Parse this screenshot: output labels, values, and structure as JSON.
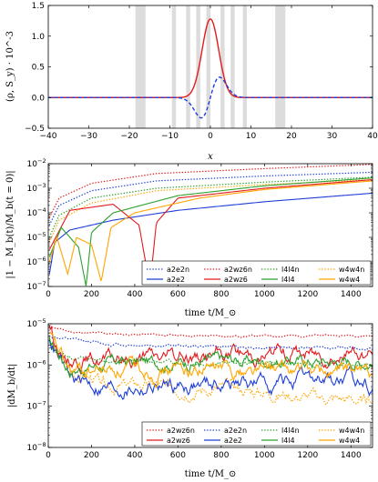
{
  "chart_data": [
    {
      "type": "line",
      "xlabel": "x",
      "ylabel": "(ρ, S_y) · 10^-3",
      "xlim": [
        -40,
        40
      ],
      "ylim": [
        -0.5,
        1.5
      ],
      "xticks": [
        "−40",
        "−30",
        "−20",
        "−10",
        "0",
        "10",
        "20",
        "30",
        "40"
      ],
      "yticks": [
        "−0.5",
        "0.0",
        "0.5",
        "1.0",
        "1.5"
      ],
      "bands": [
        [
          -18.5,
          -16
        ],
        [
          -9.5,
          -8.5
        ],
        [
          -6,
          -5
        ],
        [
          -3.5,
          -2.5
        ],
        [
          -1,
          0
        ],
        [
          2.5,
          3.5
        ],
        [
          5,
          6
        ],
        [
          8,
          9
        ],
        [
          16,
          18.5
        ]
      ],
      "series": [
        {
          "color": "#e31a1c",
          "style": "solid",
          "peak": 1.28,
          "center": 0,
          "width": 2.9
        },
        {
          "color": "#1f3fd8",
          "style": "dashed",
          "amplitude": 0.45,
          "kind": "odd"
        }
      ],
      "grid": false
    },
    {
      "type": "line",
      "xlabel": "time t/M_⊙",
      "ylabel": "|1 − M_b(t)/M_b(t = 0)|",
      "scale_y": "log",
      "xlim": [
        0,
        1500
      ],
      "ylim_exp": [
        -7,
        -2
      ],
      "xticks": [
        "0",
        "200",
        "400",
        "600",
        "800",
        "1000",
        "1200",
        "1400"
      ],
      "yticks": [
        "10",
        "10",
        "10",
        "10",
        "10",
        "10"
      ],
      "ytick_exps": [
        "−7",
        "−6",
        "−5",
        "−4",
        "−3",
        "−2"
      ],
      "legend_placement": "lower-right",
      "legend": [
        {
          "label": "a2e2n",
          "color": "#1f3fd8",
          "style": "dotted"
        },
        {
          "label": "a2wz6n",
          "color": "#e31a1c",
          "style": "dotted"
        },
        {
          "label": "l4l4n",
          "color": "#2ca02c",
          "style": "dotted"
        },
        {
          "label": "w4w4n",
          "color": "#ffa500",
          "style": "dotted"
        },
        {
          "label": "a2e2",
          "color": "#1f3fd8",
          "style": "solid"
        },
        {
          "label": "a2wz6",
          "color": "#e31a1c",
          "style": "solid"
        },
        {
          "label": "l4l4",
          "color": "#2ca02c",
          "style": "solid"
        },
        {
          "label": "w4w4",
          "color": "#ffa500",
          "style": "solid"
        }
      ],
      "series": [
        {
          "name": "a2wz6n",
          "color": "#e31a1c",
          "style": "dotted",
          "points": [
            [
              5,
              -4.2
            ],
            [
              50,
              -3.4
            ],
            [
              200,
              -2.8
            ],
            [
              500,
              -2.4
            ],
            [
              1000,
              -2.2
            ],
            [
              1500,
              -2.03
            ]
          ]
        },
        {
          "name": "a2e2n",
          "color": "#1f3fd8",
          "style": "dotted",
          "points": [
            [
              5,
              -4.5
            ],
            [
              50,
              -3.7
            ],
            [
              200,
              -3.1
            ],
            [
              500,
              -2.7
            ],
            [
              1000,
              -2.5
            ],
            [
              1500,
              -2.35
            ]
          ]
        },
        {
          "name": "l4l4n",
          "color": "#2ca02c",
          "style": "dotted",
          "points": [
            [
              5,
              -5.0
            ],
            [
              50,
              -4.1
            ],
            [
              200,
              -3.4
            ],
            [
              500,
              -3.0
            ],
            [
              1000,
              -2.75
            ],
            [
              1500,
              -2.55
            ]
          ]
        },
        {
          "name": "w4w4n",
          "color": "#ffa500",
          "style": "dotted",
          "points": [
            [
              5,
              -5.2
            ],
            [
              50,
              -4.3
            ],
            [
              200,
              -3.6
            ],
            [
              500,
              -3.1
            ],
            [
              1000,
              -2.85
            ],
            [
              1500,
              -2.65
            ]
          ]
        },
        {
          "name": "a2e2",
          "color": "#1f3fd8",
          "style": "solid",
          "points": [
            [
              5,
              -6.5
            ],
            [
              30,
              -5.2
            ],
            [
              100,
              -4.7
            ],
            [
              300,
              -4.3
            ],
            [
              600,
              -3.9
            ],
            [
              1000,
              -3.55
            ],
            [
              1500,
              -3.2
            ]
          ]
        },
        {
          "name": "a2wz6",
          "color": "#e31a1c",
          "style": "solid",
          "points": [
            [
              5,
              -5.5
            ],
            [
              100,
              -3.9
            ],
            [
              300,
              -3.65
            ],
            [
              420,
              -4.5
            ],
            [
              470,
              -7.0
            ],
            [
              500,
              -4.4
            ],
            [
              600,
              -3.4
            ],
            [
              1000,
              -3.0
            ],
            [
              1500,
              -2.65
            ]
          ]
        },
        {
          "name": "l4l4",
          "color": "#2ca02c",
          "style": "solid",
          "points": [
            [
              5,
              -5.8
            ],
            [
              60,
              -4.6
            ],
            [
              140,
              -5.4
            ],
            [
              175,
              -7.0
            ],
            [
              200,
              -4.8
            ],
            [
              300,
              -4.0
            ],
            [
              600,
              -3.3
            ],
            [
              1000,
              -2.9
            ],
            [
              1500,
              -2.58
            ]
          ]
        },
        {
          "name": "w4w4",
          "color": "#ffa500",
          "style": "solid",
          "points": [
            [
              5,
              -6.0
            ],
            [
              40,
              -5.0
            ],
            [
              90,
              -6.5
            ],
            [
              130,
              -5.0
            ],
            [
              200,
              -5.3
            ],
            [
              245,
              -6.8
            ],
            [
              290,
              -4.6
            ],
            [
              400,
              -4.0
            ],
            [
              700,
              -3.4
            ],
            [
              1000,
              -3.05
            ],
            [
              1500,
              -2.7
            ]
          ]
        }
      ],
      "grid": false
    },
    {
      "type": "line",
      "xlabel": "time t/M_⊙",
      "ylabel": "|dM_b/dt|",
      "scale_y": "log",
      "xlim": [
        0,
        1500
      ],
      "ylim_exp": [
        -8,
        -5
      ],
      "xticks": [
        "0",
        "200",
        "400",
        "600",
        "800",
        "1000",
        "1200",
        "1400"
      ],
      "yticks": [
        "10",
        "10",
        "10",
        "10"
      ],
      "ytick_exps": [
        "−8",
        "−7",
        "−6",
        "−5"
      ],
      "legend_placement": "lower-right",
      "legend": [
        {
          "label": "a2wz6n",
          "color": "#e31a1c",
          "style": "dotted"
        },
        {
          "label": "a2e2n",
          "color": "#1f3fd8",
          "style": "dotted"
        },
        {
          "label": "l4l4n",
          "color": "#2ca02c",
          "style": "dotted"
        },
        {
          "label": "w4w4n",
          "color": "#ffa500",
          "style": "dotted"
        },
        {
          "label": "a2wz6",
          "color": "#e31a1c",
          "style": "solid"
        },
        {
          "label": "a2e2",
          "color": "#1f3fd8",
          "style": "solid"
        },
        {
          "label": "l4l4",
          "color": "#2ca02c",
          "style": "solid"
        },
        {
          "label": "w4w4",
          "color": "#ffa500",
          "style": "solid"
        }
      ],
      "series": [
        {
          "name": "a2wz6n",
          "color": "#e31a1c",
          "style": "dotted",
          "base": [
            [
              5,
              -5.05
            ],
            [
              100,
              -5.2
            ],
            [
              300,
              -5.25
            ],
            [
              800,
              -5.3
            ],
            [
              1500,
              -5.28
            ]
          ],
          "noise": 0.02,
          "seed": 11
        },
        {
          "name": "a2e2n",
          "color": "#1f3fd8",
          "style": "dotted",
          "base": [
            [
              5,
              -5.3
            ],
            [
              100,
              -5.4
            ],
            [
              300,
              -5.5
            ],
            [
              800,
              -5.55
            ],
            [
              1500,
              -5.6
            ]
          ],
          "noise": 0.03,
          "seed": 12
        },
        {
          "name": "l4l4n",
          "color": "#2ca02c",
          "style": "dotted",
          "base": [
            [
              5,
              -5.6
            ],
            [
              100,
              -5.8
            ],
            [
              300,
              -5.9
            ],
            [
              800,
              -5.95
            ],
            [
              1500,
              -6.0
            ]
          ],
          "noise": 0.04,
          "seed": 13
        },
        {
          "name": "w4w4n",
          "color": "#ffa500",
          "style": "dotted",
          "base": [
            [
              5,
              -5.5
            ],
            [
              100,
              -6.2
            ],
            [
              300,
              -6.5
            ],
            [
              800,
              -6.6
            ],
            [
              1500,
              -6.9
            ]
          ],
          "noise": 0.12,
          "seed": 14
        },
        {
          "name": "a2wz6",
          "color": "#e31a1c",
          "style": "solid",
          "base": [
            [
              5,
              -5.0
            ],
            [
              60,
              -5.8
            ],
            [
              300,
              -5.9
            ],
            [
              800,
              -5.75
            ],
            [
              1500,
              -5.7
            ]
          ],
          "noise": 0.15,
          "seed": 15
        },
        {
          "name": "a2e2",
          "color": "#1f3fd8",
          "style": "solid",
          "base": [
            [
              5,
              -5.3
            ],
            [
              100,
              -6.4
            ],
            [
              300,
              -6.55
            ],
            [
              800,
              -6.45
            ],
            [
              1500,
              -6.4
            ]
          ],
          "noise": 0.15,
          "seed": 16
        },
        {
          "name": "l4l4",
          "color": "#2ca02c",
          "style": "solid",
          "base": [
            [
              5,
              -5.4
            ],
            [
              100,
              -6.1
            ],
            [
              300,
              -5.95
            ],
            [
              800,
              -5.9
            ],
            [
              1500,
              -5.9
            ]
          ],
          "noise": 0.12,
          "seed": 17
        },
        {
          "name": "w4w4",
          "color": "#ffa500",
          "style": "solid",
          "base": [
            [
              5,
              -5.3
            ],
            [
              100,
              -6.2
            ],
            [
              300,
              -6.1
            ],
            [
              800,
              -6.1
            ],
            [
              1500,
              -6.2
            ]
          ],
          "noise": 0.15,
          "seed": 18
        }
      ],
      "grid": false
    }
  ]
}
